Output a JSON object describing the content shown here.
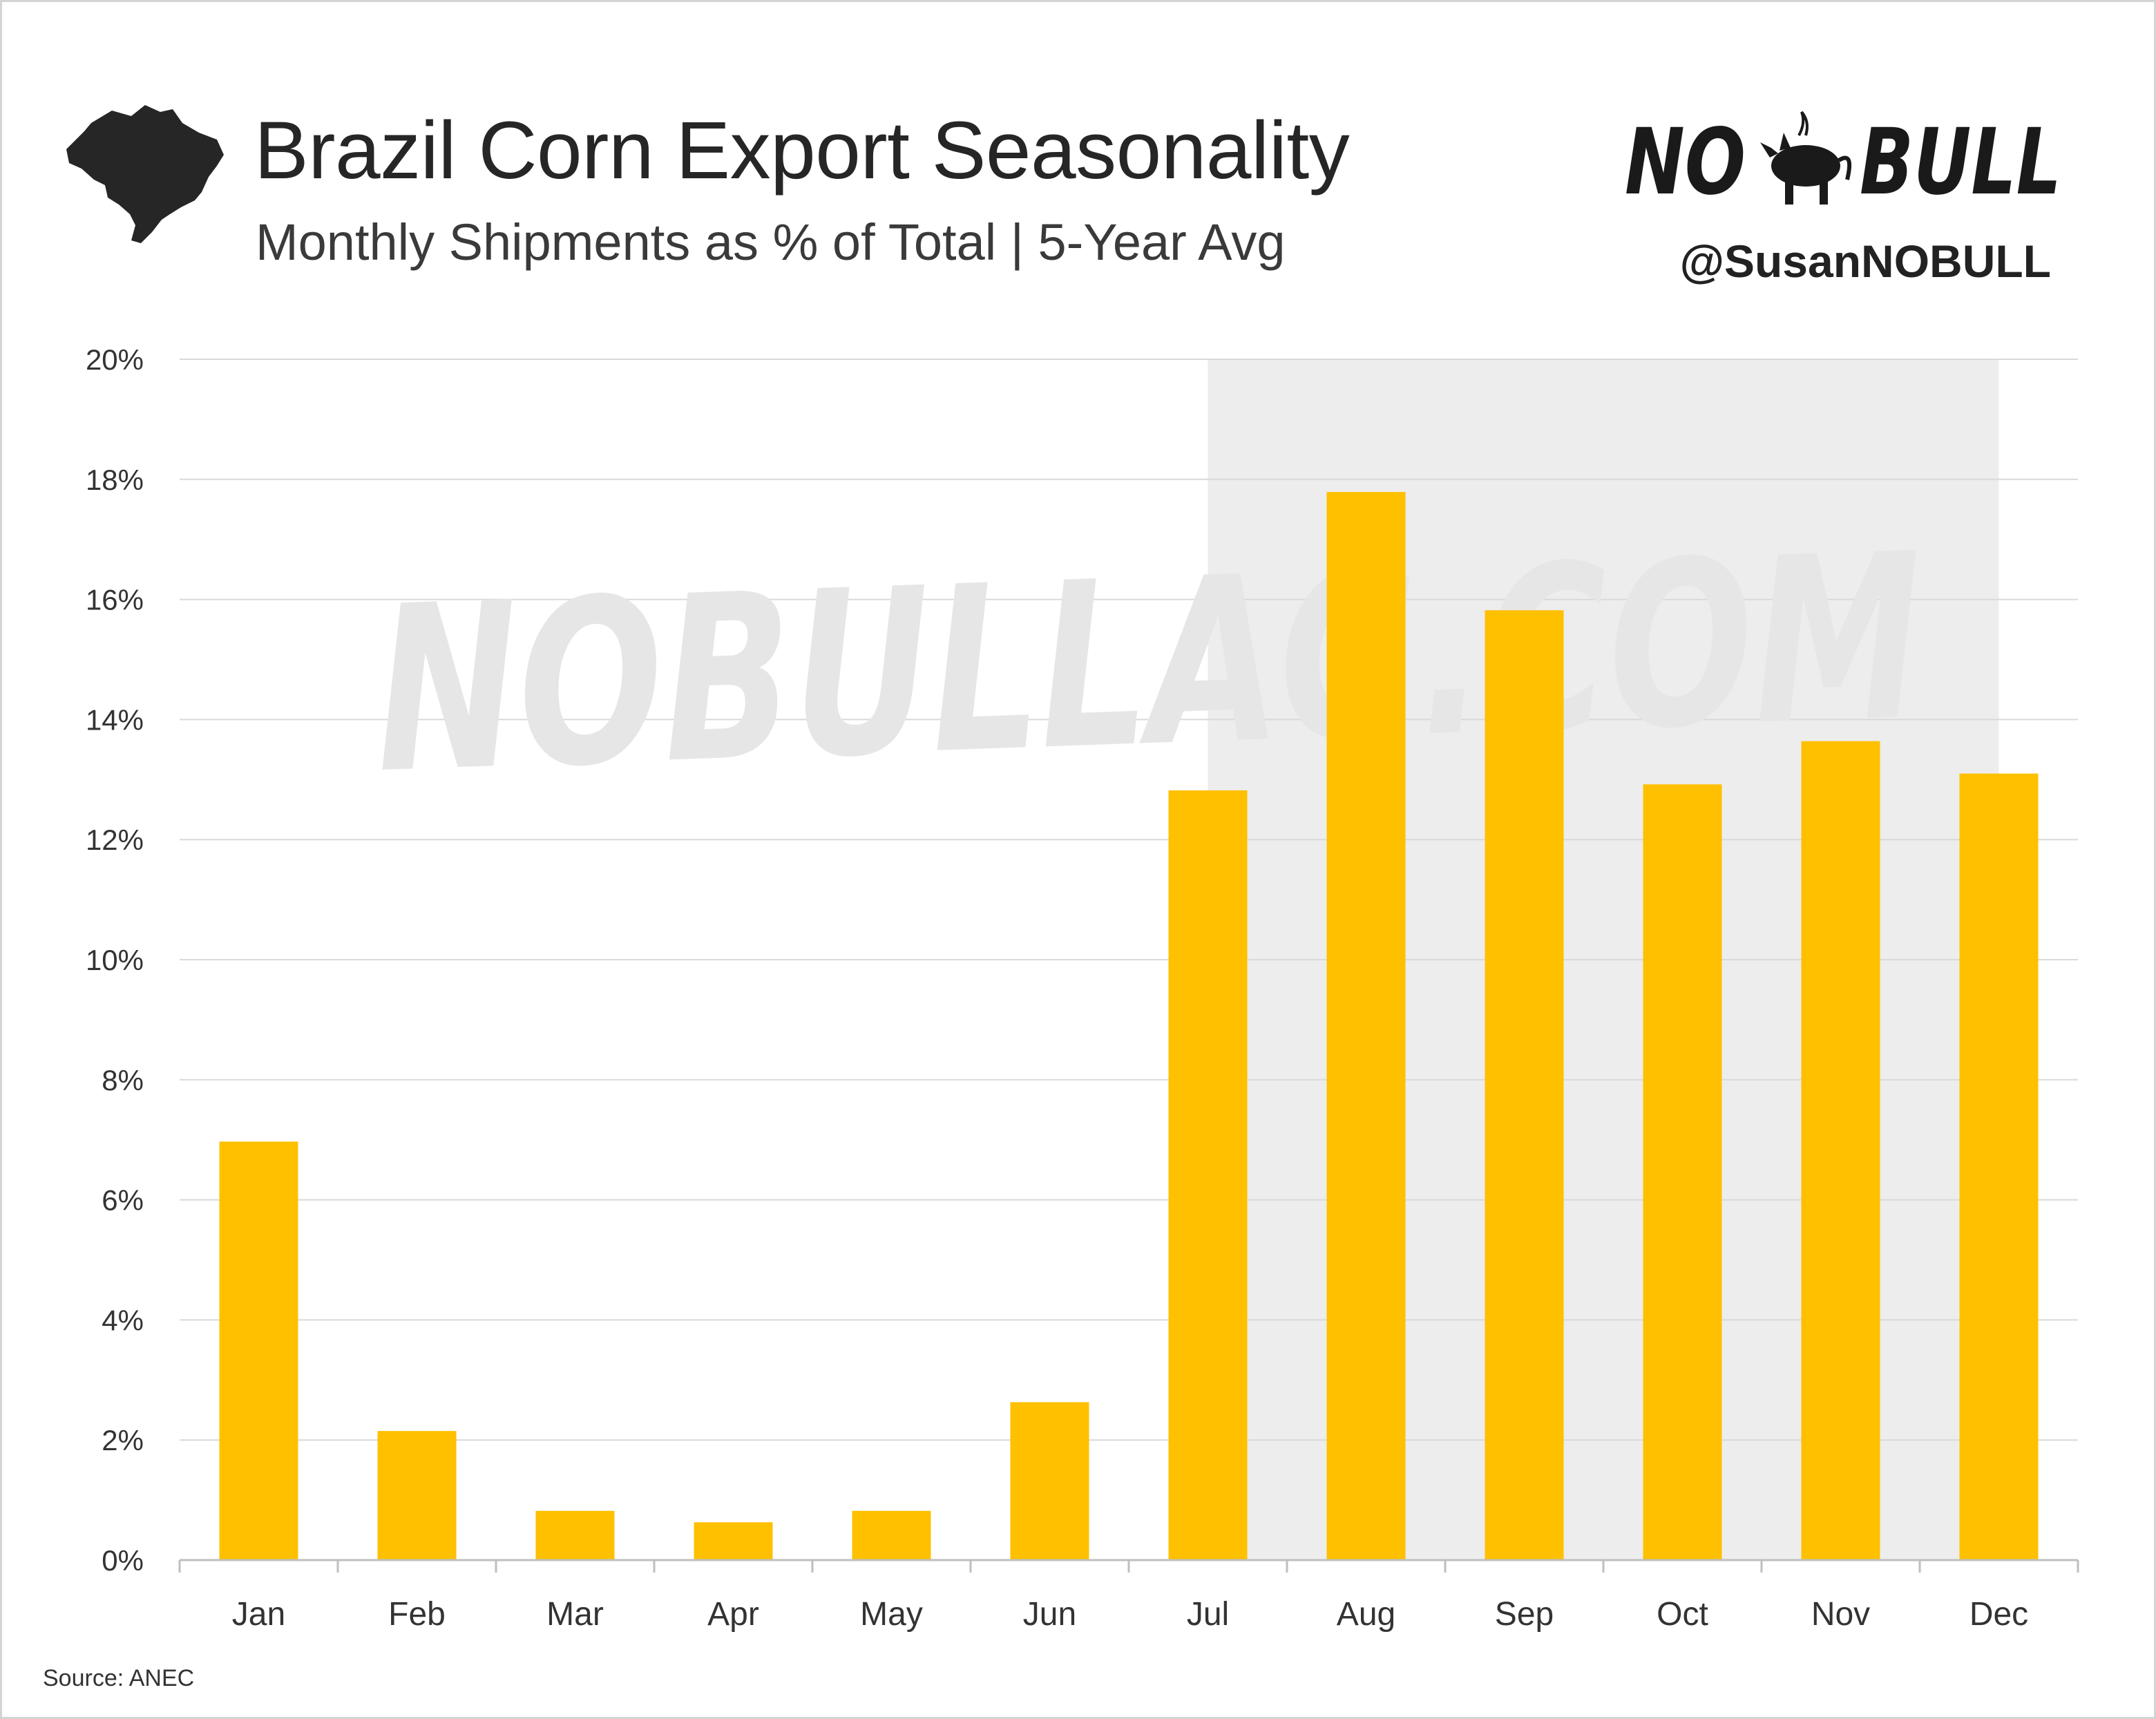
{
  "header": {
    "title": "Brazil Corn Export Seasonality",
    "subtitle": "Monthly Shipments as % of Total | 5-Year Avg",
    "logo_text": "NO BULL",
    "handle": "@SusanNOBULL",
    "icon": "brazil-map-icon"
  },
  "watermark": "NOBULLAG.COM",
  "footer": {
    "source": "Source: ANEC"
  },
  "colors": {
    "bar": "#FFC000",
    "shade": "#EDEDED",
    "grid": "#D9D9D9",
    "text": "#262626",
    "watermark": "#E6E6E6"
  },
  "chart_data": {
    "type": "bar",
    "title": "Brazil Corn Export Seasonality",
    "subtitle": "Monthly Shipments as % of Total | 5-Year Avg",
    "xlabel": "",
    "ylabel": "",
    "categories": [
      "Jan",
      "Feb",
      "Mar",
      "Apr",
      "May",
      "Jun",
      "Jul",
      "Aug",
      "Sep",
      "Oct",
      "Nov",
      "Dec"
    ],
    "values": [
      6.97,
      2.15,
      0.82,
      0.63,
      0.82,
      2.63,
      12.82,
      17.79,
      15.82,
      12.92,
      13.64,
      13.1
    ],
    "unit": "%",
    "ylim": [
      0,
      20
    ],
    "yticks": [
      0,
      2,
      4,
      6,
      8,
      10,
      12,
      14,
      16,
      18,
      20
    ],
    "ytick_labels": [
      "0%",
      "2%",
      "4%",
      "6%",
      "8%",
      "10%",
      "12%",
      "14%",
      "16%",
      "18%",
      "20%"
    ],
    "highlight_range": [
      "Jul",
      "Dec"
    ],
    "grid": true,
    "legend": "none"
  }
}
